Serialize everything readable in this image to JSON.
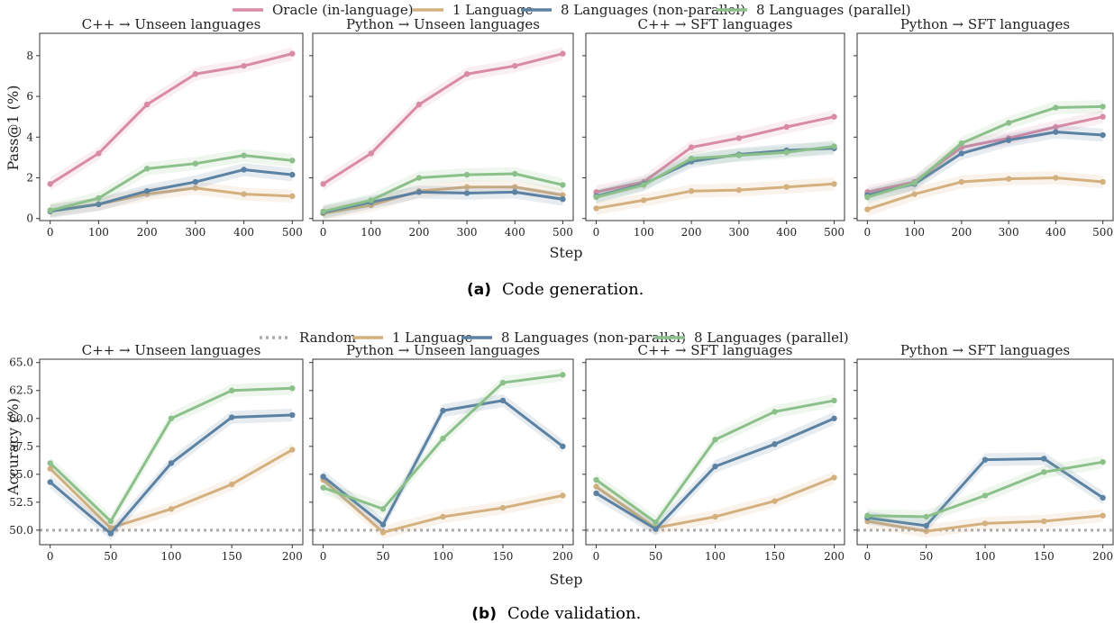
{
  "figure_a": {
    "caption_label": "(a)",
    "caption_text": "Code generation.",
    "xlabel": "Step",
    "ylabel": "Pass@1 (%)",
    "legend": [
      {
        "name": "Oracle (in-language)",
        "color": "#d98aa6"
      },
      {
        "name": "1 Language",
        "color": "#d4b07f"
      },
      {
        "name": "8 Languages (non-parallel)",
        "color": "#5b81a3"
      },
      {
        "name": "8 Languages (parallel)",
        "color": "#8cc08a"
      }
    ]
  },
  "figure_b": {
    "caption_label": "(b)",
    "caption_text": "Code validation.",
    "xlabel": "Step",
    "ylabel": "Accuracy (%)",
    "legend": [
      {
        "name": "Random",
        "color": "#aaaaaa",
        "style": "dotted"
      },
      {
        "name": "1 Language",
        "color": "#d4b07f"
      },
      {
        "name": "8 Languages (non-parallel)",
        "color": "#5b81a3"
      },
      {
        "name": "8 Languages (parallel)",
        "color": "#8cc08a"
      }
    ]
  },
  "chart_data": [
    {
      "type": "line",
      "title": "C++ → Unseen languages",
      "x": [
        0,
        100,
        200,
        300,
        400,
        500
      ],
      "xticks": [
        "0",
        "100",
        "200",
        "300",
        "400",
        "500"
      ],
      "yticks": [
        "0",
        "2",
        "4",
        "6",
        "8"
      ],
      "ylim": [
        -0.1,
        9.1
      ],
      "series": [
        {
          "name": "Oracle (in-language)",
          "color": "#d98aa6",
          "values": [
            1.7,
            3.2,
            5.6,
            7.1,
            7.5,
            8.1
          ]
        },
        {
          "name": "1 Language",
          "color": "#d4b07f",
          "values": [
            0.4,
            0.7,
            1.2,
            1.5,
            1.2,
            1.1
          ]
        },
        {
          "name": "8 Languages (non-parallel)",
          "color": "#5b81a3",
          "values": [
            0.35,
            0.7,
            1.35,
            1.8,
            2.4,
            2.15
          ]
        },
        {
          "name": "8 Languages (parallel)",
          "color": "#8cc08a",
          "values": [
            0.4,
            1.0,
            2.45,
            2.7,
            3.1,
            2.85
          ]
        }
      ]
    },
    {
      "type": "line",
      "title": "Python → Unseen languages",
      "x": [
        0,
        100,
        200,
        300,
        400,
        500
      ],
      "xticks": [
        "0",
        "100",
        "200",
        "300",
        "400",
        "500"
      ],
      "yticks": [],
      "ylim": [
        -0.1,
        9.1
      ],
      "series": [
        {
          "name": "Oracle (in-language)",
          "color": "#d98aa6",
          "values": [
            1.7,
            3.2,
            5.6,
            7.1,
            7.5,
            8.1
          ]
        },
        {
          "name": "1 Language",
          "color": "#d4b07f",
          "values": [
            0.25,
            0.65,
            1.35,
            1.55,
            1.55,
            1.15
          ]
        },
        {
          "name": "8 Languages (non-parallel)",
          "color": "#5b81a3",
          "values": [
            0.3,
            0.8,
            1.3,
            1.25,
            1.3,
            0.95
          ]
        },
        {
          "name": "8 Languages (parallel)",
          "color": "#8cc08a",
          "values": [
            0.35,
            0.9,
            2.0,
            2.15,
            2.2,
            1.65
          ]
        }
      ]
    },
    {
      "type": "line",
      "title": "C++ → SFT languages",
      "x": [
        0,
        100,
        200,
        300,
        400,
        500
      ],
      "xticks": [
        "0",
        "100",
        "200",
        "300",
        "400",
        "500"
      ],
      "yticks": [],
      "ylim": [
        -0.1,
        9.1
      ],
      "series": [
        {
          "name": "Oracle (in-language)",
          "color": "#d98aa6",
          "values": [
            1.3,
            1.8,
            3.5,
            3.95,
            4.5,
            5.0
          ]
        },
        {
          "name": "1 Language",
          "color": "#d4b07f",
          "values": [
            0.5,
            0.9,
            1.35,
            1.4,
            1.55,
            1.7
          ]
        },
        {
          "name": "8 Languages (non-parallel)",
          "color": "#5b81a3",
          "values": [
            1.1,
            1.7,
            2.8,
            3.15,
            3.35,
            3.45
          ]
        },
        {
          "name": "8 Languages (parallel)",
          "color": "#8cc08a",
          "values": [
            1.05,
            1.65,
            2.95,
            3.1,
            3.25,
            3.55
          ]
        }
      ]
    },
    {
      "type": "line",
      "title": "Python → SFT languages",
      "x": [
        0,
        100,
        200,
        300,
        400,
        500
      ],
      "xticks": [
        "0",
        "100",
        "200",
        "300",
        "400",
        "500"
      ],
      "yticks": [],
      "ylim": [
        -0.1,
        9.1
      ],
      "series": [
        {
          "name": "Oracle (in-language)",
          "color": "#d98aa6",
          "values": [
            1.3,
            1.8,
            3.5,
            3.95,
            4.5,
            5.0
          ]
        },
        {
          "name": "1 Language",
          "color": "#d4b07f",
          "values": [
            0.45,
            1.2,
            1.8,
            1.95,
            2.0,
            1.8
          ]
        },
        {
          "name": "8 Languages (non-parallel)",
          "color": "#5b81a3",
          "values": [
            1.15,
            1.7,
            3.2,
            3.85,
            4.25,
            4.1
          ]
        },
        {
          "name": "8 Languages (parallel)",
          "color": "#8cc08a",
          "values": [
            1.05,
            1.75,
            3.7,
            4.7,
            5.45,
            5.5
          ]
        }
      ]
    },
    {
      "type": "line",
      "title": "C++ → Unseen languages",
      "x": [
        0,
        50,
        100,
        150,
        200
      ],
      "xticks": [
        "0",
        "50",
        "100",
        "150",
        "200"
      ],
      "yticks": [
        "50.0",
        "52.5",
        "55.0",
        "57.5",
        "60.0",
        "62.5",
        "65.0"
      ],
      "ylim": [
        48.7,
        65.3
      ],
      "random": 50.0,
      "series": [
        {
          "name": "1 Language",
          "color": "#d4b07f",
          "values": [
            55.5,
            50.2,
            51.9,
            54.1,
            57.2
          ]
        },
        {
          "name": "8 Languages (non-parallel)",
          "color": "#5b81a3",
          "values": [
            54.3,
            49.7,
            56.0,
            60.1,
            60.3
          ]
        },
        {
          "name": "8 Languages (parallel)",
          "color": "#8cc08a",
          "values": [
            56.0,
            50.8,
            60.0,
            62.5,
            62.7
          ]
        }
      ]
    },
    {
      "type": "line",
      "title": "Python → Unseen languages",
      "x": [
        0,
        50,
        100,
        150,
        200
      ],
      "xticks": [
        "0",
        "50",
        "100",
        "150",
        "200"
      ],
      "yticks": [],
      "ylim": [
        48.7,
        65.3
      ],
      "random": 50.0,
      "series": [
        {
          "name": "1 Language",
          "color": "#d4b07f",
          "values": [
            54.5,
            49.8,
            51.2,
            52.0,
            53.1
          ]
        },
        {
          "name": "8 Languages (non-parallel)",
          "color": "#5b81a3",
          "values": [
            54.8,
            50.5,
            60.7,
            61.6,
            57.5
          ]
        },
        {
          "name": "8 Languages (parallel)",
          "color": "#8cc08a",
          "values": [
            53.8,
            51.9,
            58.2,
            63.2,
            63.9
          ]
        }
      ]
    },
    {
      "type": "line",
      "title": "C++ → SFT languages",
      "x": [
        0,
        50,
        100,
        150,
        200
      ],
      "xticks": [
        "0",
        "50",
        "100",
        "150",
        "200"
      ],
      "yticks": [],
      "ylim": [
        48.7,
        65.3
      ],
      "random": 50.0,
      "series": [
        {
          "name": "1 Language",
          "color": "#d4b07f",
          "values": [
            53.9,
            50.2,
            51.2,
            52.6,
            54.7
          ]
        },
        {
          "name": "8 Languages (non-parallel)",
          "color": "#5b81a3",
          "values": [
            53.3,
            50.1,
            55.7,
            57.7,
            60.0
          ]
        },
        {
          "name": "8 Languages (parallel)",
          "color": "#8cc08a",
          "values": [
            54.5,
            50.7,
            58.1,
            60.6,
            61.6
          ]
        }
      ]
    },
    {
      "type": "line",
      "title": "Python → SFT languages",
      "x": [
        0,
        50,
        100,
        150,
        200
      ],
      "xticks": [
        "0",
        "50",
        "100",
        "150",
        "200"
      ],
      "yticks": [],
      "ylim": [
        48.7,
        65.3
      ],
      "random": 50.0,
      "series": [
        {
          "name": "1 Language",
          "color": "#d4b07f",
          "values": [
            50.8,
            49.9,
            50.6,
            50.8,
            51.3
          ]
        },
        {
          "name": "8 Languages (non-parallel)",
          "color": "#5b81a3",
          "values": [
            51.1,
            50.4,
            56.3,
            56.4,
            52.9
          ]
        },
        {
          "name": "8 Languages (parallel)",
          "color": "#8cc08a",
          "values": [
            51.3,
            51.2,
            53.1,
            55.2,
            56.1
          ]
        }
      ]
    }
  ]
}
